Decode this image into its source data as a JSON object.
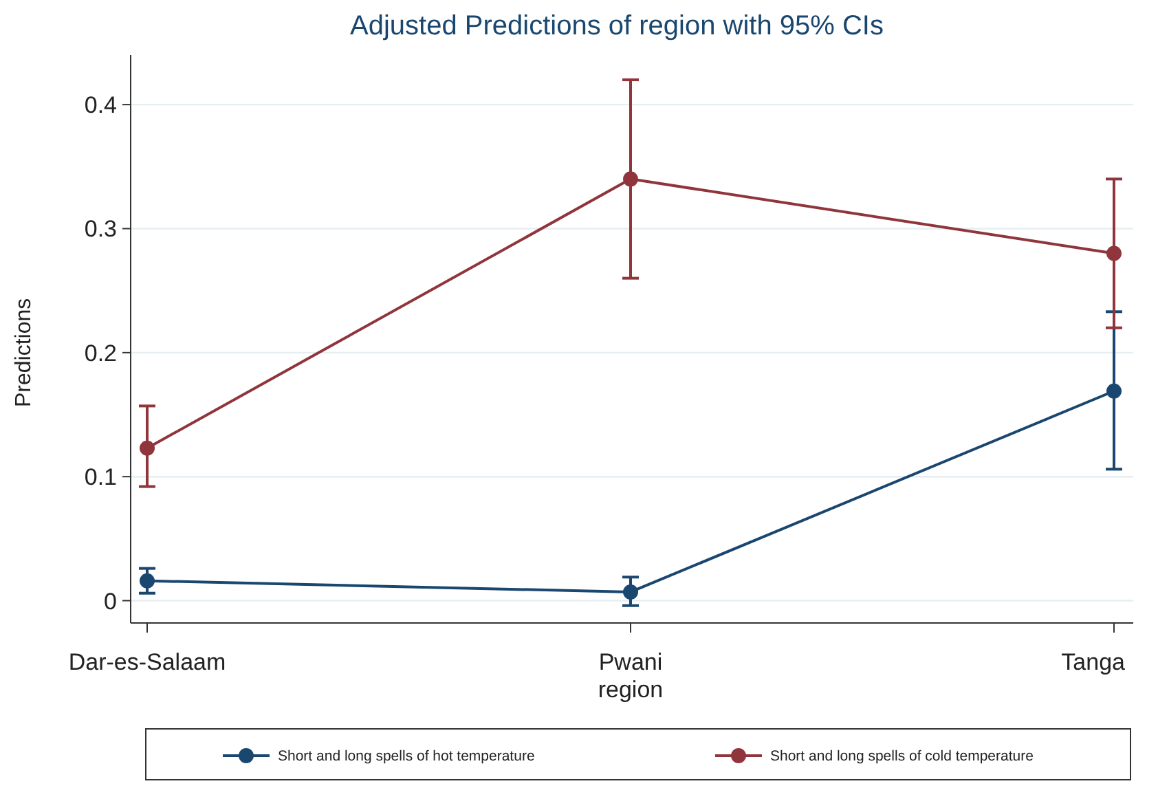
{
  "chart_data": {
    "type": "line",
    "title": "Adjusted Predictions of region with 95% CIs",
    "ylabel": "Predictions",
    "categories": [
      "Dar-es-Salaam",
      "Pwani\nregion",
      "Tanga"
    ],
    "series": [
      {
        "name": "Short and long spells of hot temperature",
        "color": "#1a476f",
        "values": [
          0.016,
          0.007,
          0.169
        ],
        "errors": [
          [
            0.006,
            0.026
          ],
          [
            -0.004,
            0.019
          ],
          [
            0.106,
            0.233
          ]
        ]
      },
      {
        "name": "Short and long spells of cold temperature",
        "color": "#90353b",
        "values": [
          0.123,
          0.34,
          0.28
        ],
        "errors": [
          [
            0.092,
            0.157
          ],
          [
            0.26,
            0.42
          ],
          [
            0.22,
            0.34
          ]
        ]
      }
    ],
    "ylim": [
      -0.018,
      0.44
    ],
    "yticks": [
      0,
      0.1,
      0.2,
      0.3,
      0.4
    ],
    "grid": "y",
    "legend": "bottom",
    "marker": "circle",
    "line_style": "solid"
  }
}
